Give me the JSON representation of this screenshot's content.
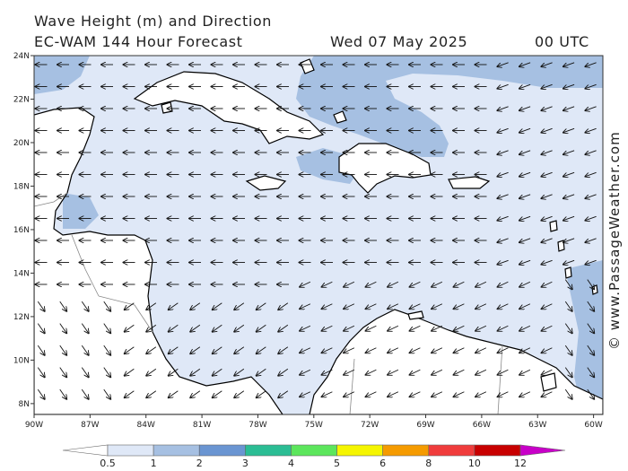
{
  "header": {
    "title": "Wave Height (m) and Direction",
    "model": "EC-WAM 144 Hour Forecast",
    "date": "Wed 07 May 2025",
    "time": "00 UTC"
  },
  "copyright": "© www.PassageWeather.com",
  "map": {
    "lat_labels": [
      "24N",
      "22N",
      "20N",
      "18N",
      "16N",
      "14N",
      "12N",
      "10N",
      "8N"
    ],
    "lon_labels": [
      "90W",
      "87W",
      "84W",
      "81W",
      "78W",
      "75W",
      "72W",
      "69W",
      "66W",
      "63W",
      "60W"
    ],
    "lat_values": [
      24,
      22,
      20,
      18,
      16,
      14,
      12,
      10,
      8
    ],
    "lon_values": [
      -90,
      -87,
      -84,
      -81,
      -78,
      -75,
      -72,
      -69,
      -66,
      -63,
      -60
    ],
    "extent": {
      "lon_min": -90,
      "lon_max": -59.5,
      "lat_min": 7.5,
      "lat_max": 24
    },
    "colors": {
      "ocean_low": "#dfe8f7",
      "ocean_mid": "#a6c0e2",
      "land": "#ffffff",
      "coast": "#000000",
      "border": "#888888"
    }
  },
  "legend": {
    "labels": [
      "0.5",
      "1",
      "2",
      "3",
      "4",
      "5",
      "6",
      "8",
      "10",
      "12"
    ],
    "colors": [
      "#ffffff",
      "#dfe8f7",
      "#a6c0e2",
      "#6a95d2",
      "#2bbd94",
      "#5ce65c",
      "#f5f500",
      "#f59b00",
      "#f03c3c",
      "#c80000",
      "#c800c8"
    ]
  }
}
